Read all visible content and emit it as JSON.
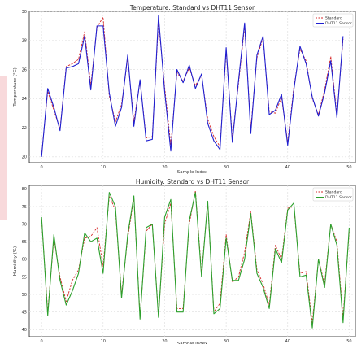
{
  "colors": {
    "standard_temp": "#d62728",
    "dht_temp": "#1f1fd0",
    "standard_hum": "#d62728",
    "dht_hum": "#2ca02c",
    "grid": "#dcdcdc",
    "side_strip": "#f8d9db"
  },
  "chart_data": [
    {
      "type": "line",
      "title": "Temperature: Standard vs DHT11 Sensor",
      "xlabel": "Sample Index",
      "ylabel": "Temperature (°C)",
      "xlim": [
        -2,
        51
      ],
      "ylim": [
        19.6,
        30.0
      ],
      "xticks": [
        0,
        10,
        20,
        30,
        40,
        50
      ],
      "yticks": [
        20,
        22,
        24,
        26,
        28,
        30
      ],
      "grid": true,
      "legend_position": "top-right",
      "series": [
        {
          "name": "Standard",
          "style": "dashed",
          "values": [
            20.1,
            24.5,
            23.2,
            21.9,
            26.2,
            26.4,
            26.7,
            28.6,
            24.9,
            28.9,
            29.6,
            24.2,
            22.4,
            23.6,
            26.8,
            22.4,
            25.2,
            21.3,
            21.4,
            29.3,
            24.8,
            20.8,
            25.8,
            25.2,
            26.1,
            24.9,
            25.6,
            22.6,
            21.4,
            20.7,
            27.3,
            21.3,
            25.0,
            29.0,
            21.9,
            26.8,
            28.2,
            23.1,
            23.0,
            24.1,
            21.0,
            24.8,
            27.4,
            26.6,
            24.0,
            22.9,
            24.6,
            26.9,
            22.9,
            28.1
          ]
        },
        {
          "name": "DHT11 Sensor",
          "style": "solid",
          "values": [
            20.0,
            24.7,
            23.4,
            21.8,
            26.1,
            26.2,
            26.4,
            28.3,
            24.6,
            29.0,
            29.0,
            24.4,
            22.1,
            23.4,
            27.0,
            22.1,
            25.3,
            21.1,
            21.2,
            29.7,
            24.5,
            20.4,
            26.0,
            25.1,
            26.3,
            24.7,
            25.7,
            22.3,
            21.1,
            20.5,
            27.5,
            21.0,
            25.2,
            29.2,
            21.6,
            27.0,
            28.3,
            22.9,
            23.2,
            24.3,
            20.8,
            24.6,
            27.6,
            26.4,
            24.1,
            22.8,
            24.4,
            26.6,
            22.7,
            28.3
          ]
        }
      ]
    },
    {
      "type": "line",
      "title": "Humidity: Standard vs DHT11 Sensor",
      "xlabel": "Sample Index",
      "ylabel": "Humidity (%)",
      "xlim": [
        -2,
        51
      ],
      "ylim": [
        38,
        81
      ],
      "xticks": [
        0,
        10,
        20,
        30,
        40,
        50
      ],
      "yticks": [
        40,
        45,
        50,
        55,
        60,
        65,
        70,
        75,
        80
      ],
      "grid": true,
      "legend_position": "top-right",
      "series": [
        {
          "name": "Standard",
          "style": "dashed",
          "values": [
            71.5,
            45.0,
            66.0,
            55.0,
            48.0,
            54.0,
            57.0,
            66.0,
            66.5,
            69.0,
            58.0,
            78.0,
            74.0,
            50.0,
            66.0,
            77.5,
            43.5,
            68.0,
            70.0,
            44.0,
            70.0,
            76.0,
            46.0,
            46.0,
            70.0,
            79.5,
            56.0,
            76.0,
            45.0,
            47.5,
            67.0,
            53.5,
            55.0,
            62.0,
            73.5,
            57.0,
            53.0,
            47.0,
            64.0,
            60.0,
            74.5,
            75.0,
            56.0,
            56.5,
            42.0,
            60.0,
            53.0,
            70.0,
            65.0,
            43.5,
            68.0
          ]
        },
        {
          "name": "DHT11 Sensor",
          "style": "solid",
          "values": [
            72.0,
            44.0,
            67.0,
            54.0,
            47.0,
            51.0,
            56.0,
            67.5,
            65.0,
            66.0,
            56.0,
            79.0,
            75.0,
            49.0,
            67.0,
            78.0,
            43.0,
            69.0,
            70.0,
            43.5,
            72.0,
            77.0,
            45.0,
            45.0,
            71.0,
            79.0,
            55.0,
            76.5,
            44.5,
            46.0,
            66.0,
            54.0,
            54.0,
            60.0,
            73.0,
            56.0,
            52.0,
            46.0,
            63.0,
            59.0,
            74.0,
            76.0,
            55.0,
            55.5,
            40.5,
            60.0,
            52.0,
            70.0,
            64.0,
            42.0,
            69.0
          ]
        }
      ]
    }
  ]
}
